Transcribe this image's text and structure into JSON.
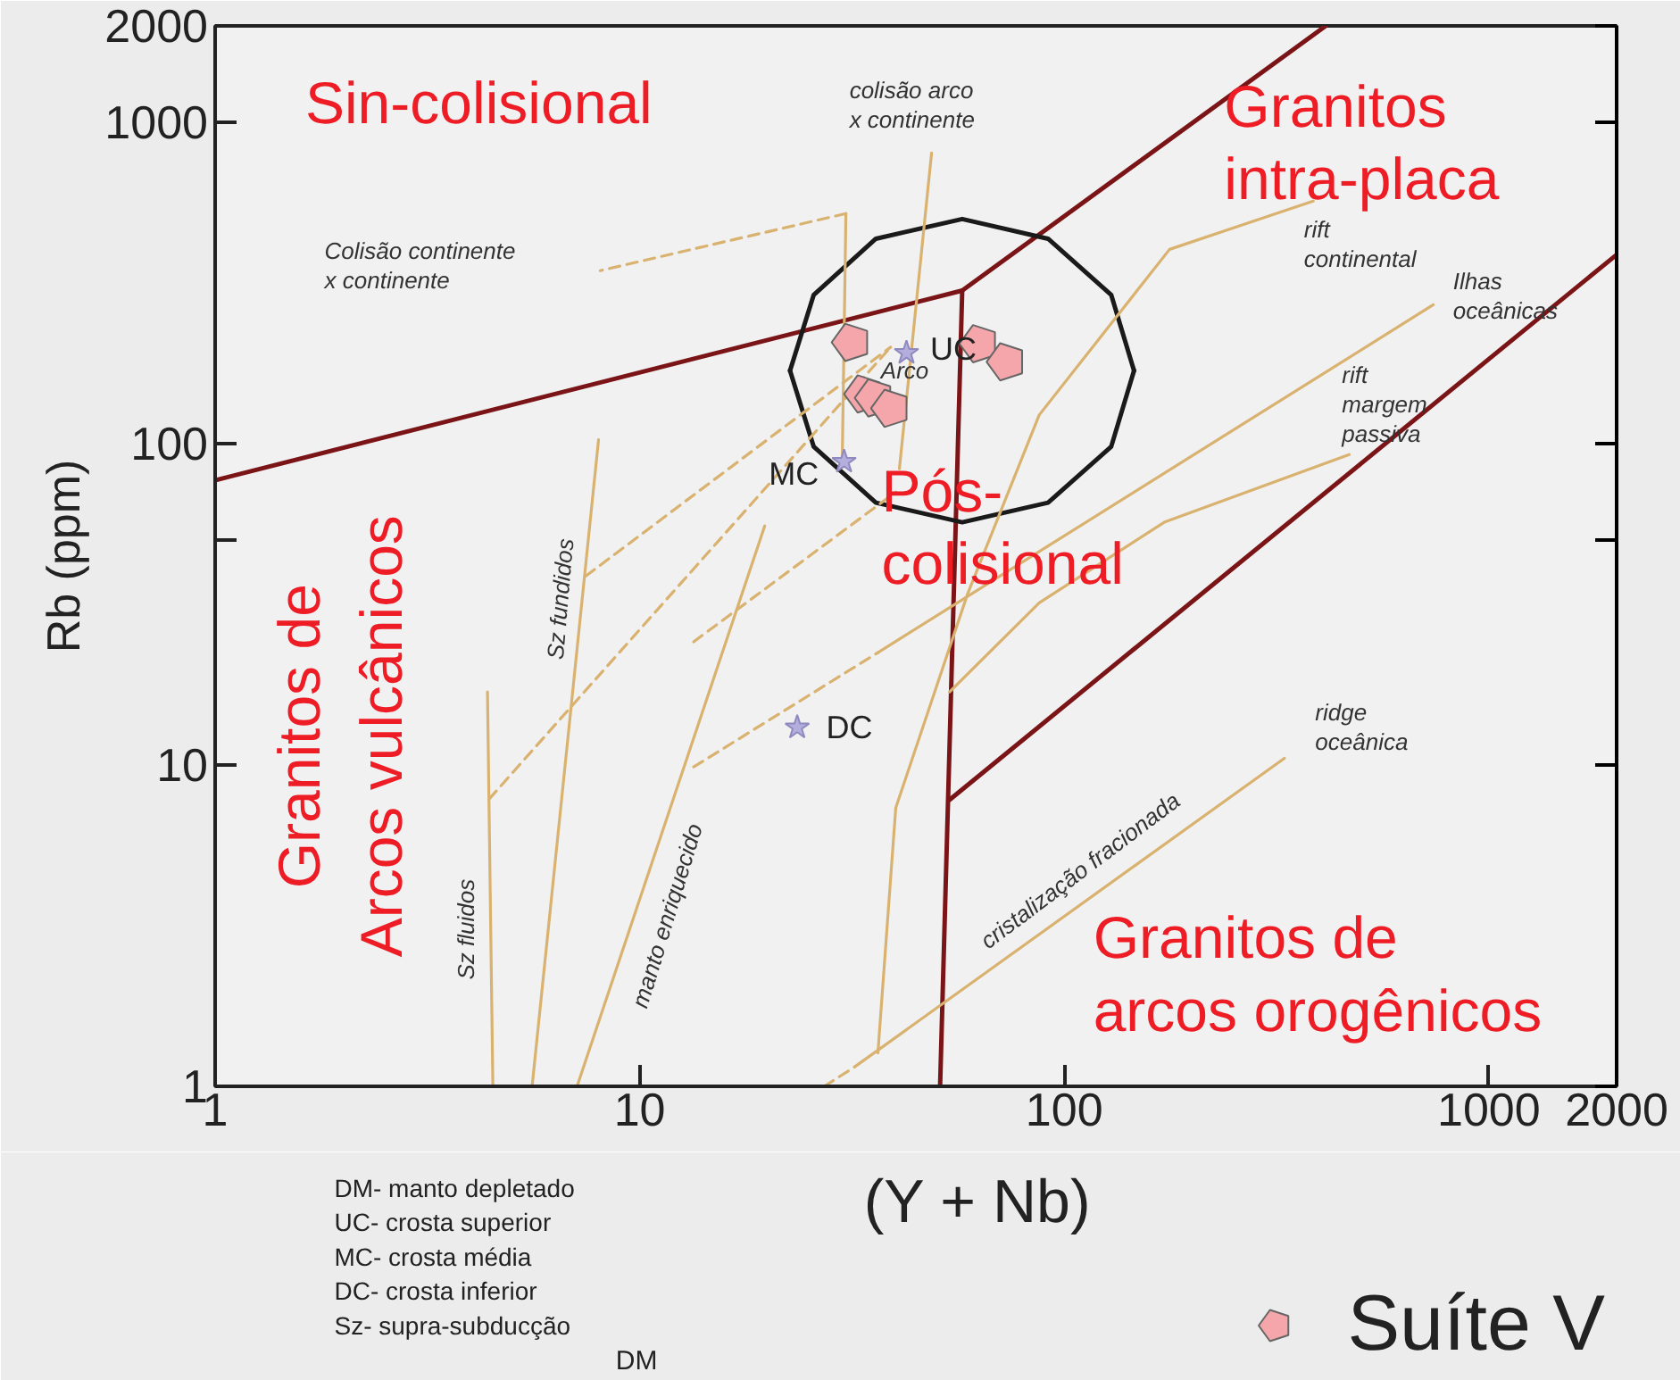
{
  "chart_data": {
    "type": "scatter",
    "xlabel": "(Y + Nb)",
    "ylabel": "Rb (ppm)",
    "log": "xy",
    "xlim": [
      1,
      2000
    ],
    "ylim": [
      1,
      2000
    ],
    "xticks": [
      1,
      10,
      100,
      1000,
      2000
    ],
    "yticks": [
      1,
      10,
      {
        "value": 50,
        "label": null
      },
      100,
      1000,
      2000
    ],
    "grid": false,
    "legend": "bottom right",
    "series": [
      {
        "name": "Suíte V",
        "color": "#f4a6aa",
        "x": [
          31.5,
          63,
          73,
          33.7,
          35.7,
          39
        ],
        "values": [
          207,
          205,
          180,
          143,
          139,
          129
        ]
      },
      {
        "marker": "star",
        "color": "#b3aedb",
        "x": [
          42.5,
          30.3,
          23.5
        ],
        "values": [
          192,
          88,
          13.1
        ]
      },
      {
        "type": "line",
        "color": "#7b1416",
        "x": [
          1,
          57.5,
          413
        ],
        "values": [
          77,
          300,
          2000
        ]
      },
      {
        "type": "line",
        "color": "#7b1416",
        "x": [
          57.5,
          51
        ],
        "values": [
          300,
          1
        ]
      },
      {
        "type": "line",
        "color": "#7b1416",
        "x": [
          53.7,
          2000
        ],
        "values": [
          7.8,
          388
        ]
      },
      {
        "type": "line",
        "color": "#1a1a1a",
        "x": [
          146,
          129,
          91.6,
          57.5,
          36,
          25.7,
          22.6
        ],
        "values": [
          169,
          291,
          435,
          501,
          435,
          291,
          169
        ]
      },
      {
        "type": "line",
        "color": "#1a1a1a",
        "x": [
          22.6,
          25.7,
          36,
          57.5,
          91.6,
          129,
          146
        ],
        "values": [
          169,
          98,
          65.6,
          57,
          65.6,
          98,
          169
        ]
      },
      {
        "type": "line",
        "color": "#d9b26f",
        "line_style": "solid",
        "x": [
          4.51,
          4.38
        ],
        "values": [
          1,
          16.9
        ]
      },
      {
        "type": "line",
        "color": "#d9b26f",
        "line_style": "solid",
        "x": [
          5.58,
          8.0
        ],
        "values": [
          1,
          103
        ]
      },
      {
        "type": "line",
        "color": "#d9b26f",
        "line_style": "solid",
        "x": [
          7.12,
          19.7
        ],
        "values": [
          1,
          55.5
        ]
      },
      {
        "type": "line",
        "color": "#d9b26f",
        "line_style": "dashed",
        "x": [
          27.2,
          32.1
        ],
        "values": [
          1,
          1.15
        ]
      },
      {
        "type": "line",
        "color": "#d9b26f",
        "line_style": "solid",
        "x": [
          32.1,
          330
        ],
        "values": [
          1.15,
          10.5
        ]
      },
      {
        "type": "line",
        "color": "#d9b26f",
        "line_style": "dashed",
        "x": [
          4.42,
          39.0
        ],
        "values": [
          7.84,
          200
        ]
      },
      {
        "type": "line",
        "color": "#d9b26f",
        "line_style": "dashed",
        "x": [
          7.47,
          39.0
        ],
        "values": [
          38.8,
          200
        ]
      },
      {
        "type": "line",
        "color": "#d9b26f",
        "line_style": "dashed",
        "x": [
          13.4,
          40.1
        ],
        "values": [
          24.2,
          70.8
        ]
      },
      {
        "type": "line",
        "color": "#d9b26f",
        "line_style": "dashed",
        "x": [
          13.4,
          36.4
        ],
        "values": [
          9.87,
          22.4
        ]
      },
      {
        "type": "line",
        "color": "#d9b26f",
        "line_style": "solid",
        "x": [
          36.4,
          740
        ],
        "values": [
          22.4,
          271
        ]
      },
      {
        "type": "line",
        "color": "#d9b26f",
        "line_style": "solid",
        "x": [
          36.4,
          40.1,
          59.2,
          87.3,
          177,
          386
        ],
        "values": [
          1.27,
          7.36,
          34.1,
          123,
          403,
          570
        ]
      },
      {
        "type": "line",
        "color": "#d9b26f",
        "line_style": "solid",
        "x": [
          53.7,
          87.3,
          172,
          469
        ],
        "values": [
          16.9,
          32,
          57,
          92.6
        ]
      },
      {
        "type": "line",
        "color": "#d9b26f",
        "line_style": "solid",
        "x": [
          30.0,
          30.6
        ],
        "values": [
          89.1,
          521
        ]
      },
      {
        "type": "line",
        "color": "#d9b26f",
        "line_style": "dashed",
        "x": [
          30.6,
          8.07
        ],
        "values": [
          521,
          346
        ]
      },
      {
        "type": "line",
        "color": "#d9b26f",
        "line_style": "solid",
        "x": [
          40.9,
          48.7
        ],
        "values": [
          83.6,
          805
        ]
      }
    ],
    "annotations": [
      "Sin-colisional",
      "Granitos\nintra-placa",
      "Pós-\ncolisional",
      "Granitos de\nArcos vulcânicos",
      "Granitos de\narcos orogênicos",
      "colisão arco\nx continente",
      "Colisão continente\nx continente",
      "rift\ncontinental",
      "Ilhas\noceânicas",
      "rift\nmargem\npassiva",
      "ridge\noceânica",
      "Arco",
      "Sz fluidos",
      "Sz fundidos",
      "manto enriquecido",
      "cristalização fracionada",
      "UC",
      "MC",
      "DC",
      "DM- manto depletado\nUC- crosta superior\nMC- crosta média\nDC- crosta inferior\nSz- supra-subducção",
      "DM"
    ]
  }
}
